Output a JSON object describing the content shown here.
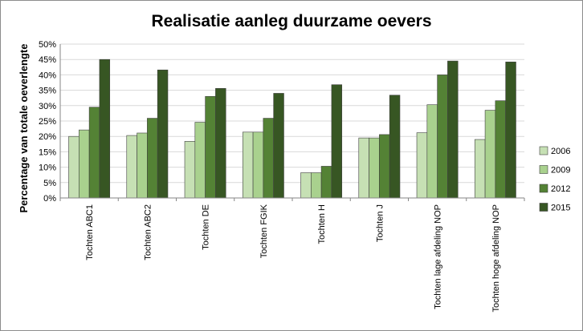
{
  "chart_data": {
    "type": "bar",
    "title": "Realisatie aanleg duurzame oevers",
    "xlabel": "",
    "ylabel": "Percentage van totale oeverlengte",
    "ylim": [
      0,
      50
    ],
    "ytick_step": 5,
    "ytick_suffix": "%",
    "grid": true,
    "legend_position": "right",
    "categories": [
      "Tochten ABC1",
      "Tochten ABC2",
      "Tochten DE",
      "Tochten FGIK",
      "Tochten H",
      "Tochten J",
      "Tochten lage afdeling NOP",
      "Tochten hoge afdeling NOP"
    ],
    "series": [
      {
        "name": "2006",
        "color": "#c6e0b4",
        "values": [
          20.0,
          20.3,
          18.4,
          21.4,
          8.2,
          19.5,
          21.2,
          19.0
        ]
      },
      {
        "name": "2009",
        "color": "#a9d18e",
        "values": [
          22.1,
          21.1,
          24.6,
          21.4,
          8.2,
          19.5,
          30.3,
          28.5
        ]
      },
      {
        "name": "2012",
        "color": "#548235",
        "values": [
          29.5,
          25.9,
          33.0,
          25.9,
          10.3,
          20.6,
          40.0,
          31.6
        ]
      },
      {
        "name": "2015",
        "color": "#375623",
        "values": [
          45.0,
          41.6,
          35.6,
          34.0,
          36.8,
          33.4,
          44.5,
          44.2
        ]
      }
    ]
  }
}
